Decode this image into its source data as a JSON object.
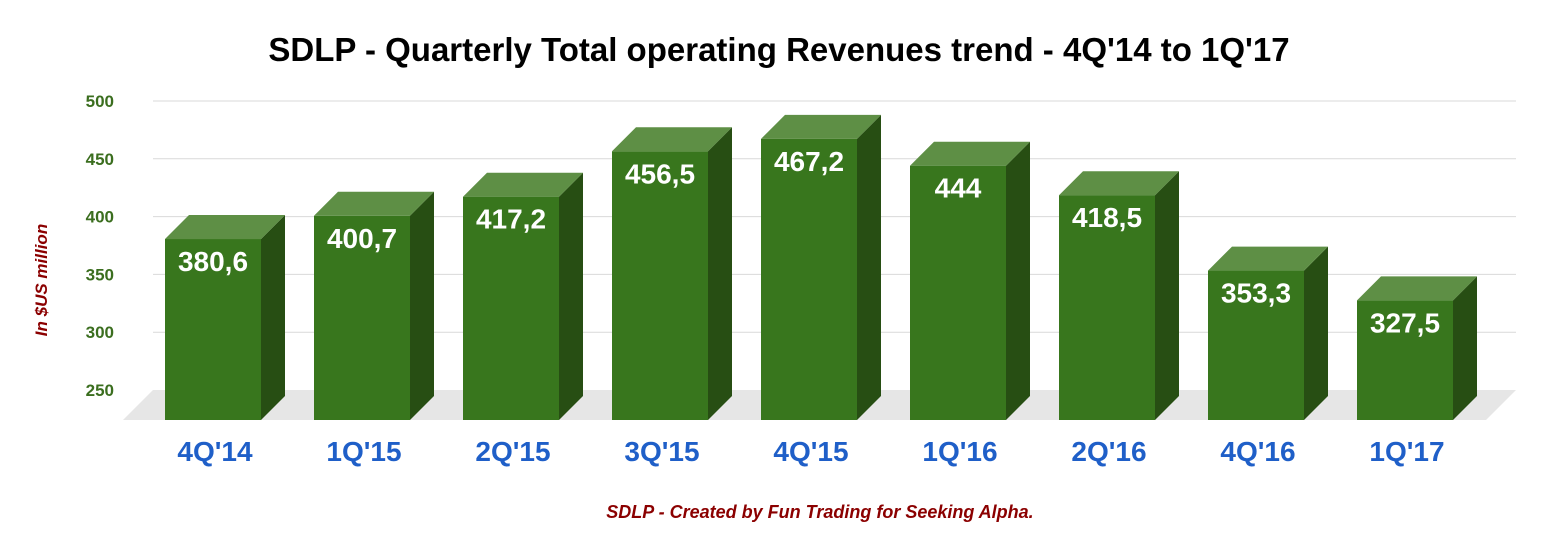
{
  "chart_data": {
    "type": "bar",
    "title": "SDLP - Quarterly Total operating Revenues trend - 4Q'14 to 1Q'17",
    "xlabel": "",
    "ylabel": "In $US million",
    "footer": "SDLP - Created by Fun Trading for Seeking Alpha.",
    "ylim": [
      250,
      500
    ],
    "yticks": [
      250,
      300,
      350,
      400,
      450,
      500
    ],
    "categories": [
      "4Q'14",
      "1Q'15",
      "2Q'15",
      "3Q'15",
      "4Q'15",
      "1Q'16",
      "2Q'16",
      "4Q'16",
      "1Q'17"
    ],
    "values": [
      380.6,
      400.7,
      417.2,
      456.5,
      467.2,
      444,
      418.5,
      353.3,
      327.5
    ],
    "value_labels": [
      "380,6",
      "400,7",
      "417,2",
      "456,5",
      "467,2",
      "444",
      "418,5",
      "353,3",
      "327,5"
    ],
    "grid": true,
    "colors": {
      "bar_front": "#38761d",
      "bar_side": "#274e13",
      "bar_top": "#5e8f45",
      "floor": "#e6e6e6",
      "grid": "#d9d9d9"
    }
  }
}
